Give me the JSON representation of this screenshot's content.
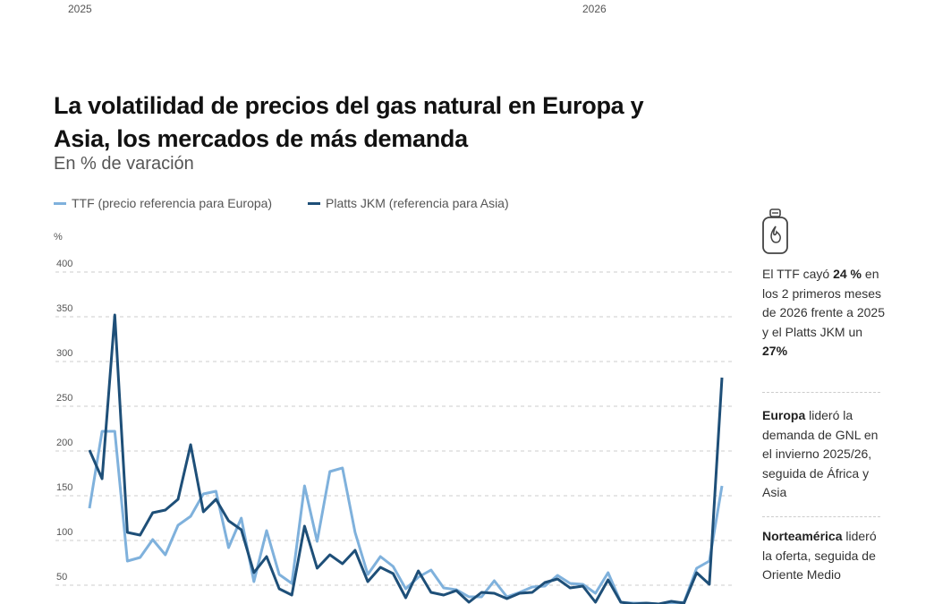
{
  "previous_chart_axis": {
    "year_left": "2025",
    "year_right": "2026"
  },
  "header": {
    "title": "La volatilidad de precios del gas natural en Europa y Asia, los mercados de más demanda",
    "subtitle": "En % de varación"
  },
  "colors": {
    "ttf": "#7fb1dc",
    "jkm": "#1e4f78",
    "grid": "#cccccc"
  },
  "chart_data": {
    "type": "line",
    "title": "La volatilidad de precios del gas natural en Europa y Asia, los mercados de más demanda",
    "subtitle": "En % de varación",
    "ylabel": "%",
    "ylim": [
      30,
      400
    ],
    "yticks": [
      50,
      100,
      150,
      200,
      250,
      300,
      350,
      400
    ],
    "grid": true,
    "legend_position": "top-left",
    "series": [
      {
        "name": "TTF (precio referencia para Europa)",
        "color": "#7fb1dc",
        "values": [
          136,
          222,
          222,
          77,
          81,
          101,
          84,
          117,
          127,
          152,
          155,
          92,
          125,
          54,
          111,
          62,
          52,
          161,
          99,
          177,
          181,
          109,
          62,
          82,
          71,
          46,
          59,
          67,
          47,
          45,
          37,
          37,
          55,
          37,
          42,
          48,
          49,
          61,
          52,
          51,
          41,
          64,
          31,
          30,
          30,
          29,
          30,
          31,
          69,
          77,
          161
        ]
      },
      {
        "name": "Platts JKM (referencia para Asia)",
        "color": "#1e4f78",
        "values": [
          201,
          169,
          352,
          109,
          106,
          131,
          134,
          146,
          207,
          132,
          146,
          122,
          112,
          64,
          82,
          46,
          39,
          116,
          69,
          84,
          74,
          89,
          54,
          70,
          63,
          36,
          66,
          42,
          39,
          44,
          31,
          42,
          41,
          35,
          41,
          42,
          53,
          57,
          47,
          49,
          31,
          56,
          31,
          29,
          30,
          29,
          32,
          30,
          64,
          51,
          282
        ]
      }
    ]
  },
  "sidebar": {
    "icon": "gas-cylinder-flame-icon",
    "note1": {
      "pre": "El TTF cayó ",
      "bold1": "24 %",
      "mid": " en los 2 primeros meses de 2026 frente a 2025 y el Platts JKM un ",
      "bold2": "27%"
    },
    "note2": {
      "bold": "Europa",
      "rest": " lideró la demanda de GNL en el invierno 2025/26, seguida de África y Asia"
    },
    "note3": {
      "bold": "Norteamérica",
      "rest": " lideró la oferta, seguida de Oriente Medio"
    }
  }
}
